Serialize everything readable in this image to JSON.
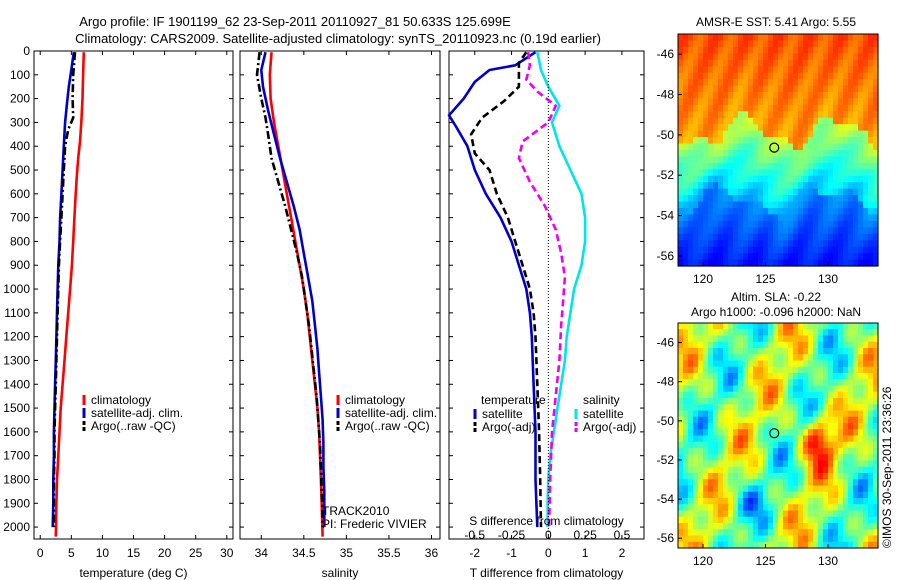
{
  "figure": {
    "title_line1": "Argo profile: IF 1901199_62 23-Sep-2011 20110927_81 50.633S 125.699E",
    "title_line2": "Climatology: CARS2009. Satellite-adjusted climatology: synTS_20110923.nc (0.19d earlier)",
    "copyright": "©IMOS 30-Sep-2011 23:36:26",
    "colors": {
      "climatology": "#ff0000",
      "satellite": "#0000cc",
      "argo": "#000000",
      "sal_sat": "#00e5e5",
      "sal_argo": "#ee00ee"
    }
  },
  "chart_data": [
    {
      "id": "temperature",
      "type": "line",
      "xlabel": "temperature (deg C)",
      "ylabel": "",
      "xlim": [
        -1,
        31
      ],
      "ylim": [
        2050,
        0
      ],
      "xticks": [
        0,
        5,
        10,
        15,
        20,
        25,
        30
      ],
      "yticks": [
        0,
        100,
        200,
        300,
        400,
        500,
        600,
        700,
        800,
        900,
        1000,
        1100,
        1200,
        1300,
        1400,
        1500,
        1600,
        1700,
        1800,
        1900,
        2000
      ],
      "legend": [
        "climatology",
        "satellite-adj. clim.",
        "Argo(..raw -QC)"
      ],
      "legend_position": "lower-center",
      "series": [
        {
          "name": "climatology",
          "style": "solid",
          "color": "#ff0000",
          "points": [
            [
              7.0,
              5
            ],
            [
              6.9,
              100
            ],
            [
              6.8,
              200
            ],
            [
              6.6,
              300
            ],
            [
              6.4,
              380
            ],
            [
              6.1,
              450
            ],
            [
              5.9,
              520
            ],
            [
              5.7,
              600
            ],
            [
              5.5,
              700
            ],
            [
              5.3,
              800
            ],
            [
              5.1,
              900
            ],
            [
              4.8,
              1000
            ],
            [
              4.5,
              1100
            ],
            [
              4.2,
              1200
            ],
            [
              3.9,
              1300
            ],
            [
              3.6,
              1400
            ],
            [
              3.3,
              1500
            ],
            [
              3.1,
              1600
            ],
            [
              2.9,
              1700
            ],
            [
              2.7,
              1800
            ],
            [
              2.6,
              1900
            ],
            [
              2.5,
              2040
            ]
          ]
        },
        {
          "name": "satellite-adj. clim.",
          "style": "solid",
          "color": "#0000cc",
          "points": [
            [
              5.4,
              5
            ],
            [
              5.0,
              80
            ],
            [
              4.6,
              150
            ],
            [
              4.3,
              220
            ],
            [
              4.0,
              300
            ],
            [
              3.8,
              400
            ],
            [
              3.6,
              500
            ],
            [
              3.4,
              600
            ],
            [
              3.2,
              700
            ],
            [
              3.1,
              800
            ],
            [
              2.9,
              900
            ],
            [
              2.8,
              1000
            ],
            [
              2.7,
              1100
            ],
            [
              2.6,
              1200
            ],
            [
              2.5,
              1300
            ],
            [
              2.4,
              1400
            ],
            [
              2.3,
              1500
            ],
            [
              2.2,
              1600
            ],
            [
              2.2,
              1700
            ],
            [
              2.1,
              1800
            ],
            [
              2.1,
              1900
            ],
            [
              2.0,
              2000
            ]
          ]
        },
        {
          "name": "Argo(..raw -QC)",
          "style": "dashdot",
          "color": "#000000",
          "points": [
            [
              5.6,
              5
            ],
            [
              5.3,
              100
            ],
            [
              5.2,
              200
            ],
            [
              5.3,
              280
            ],
            [
              4.5,
              330
            ],
            [
              4.0,
              400
            ],
            [
              3.8,
              500
            ],
            [
              3.6,
              600
            ],
            [
              3.4,
              700
            ],
            [
              3.2,
              800
            ],
            [
              3.0,
              900
            ],
            [
              2.9,
              1000
            ],
            [
              2.8,
              1100
            ],
            [
              2.7,
              1200
            ],
            [
              2.6,
              1300
            ],
            [
              2.5,
              1400
            ],
            [
              2.4,
              1500
            ],
            [
              2.3,
              1600
            ],
            [
              2.3,
              1700
            ],
            [
              2.2,
              1800
            ],
            [
              2.2,
              1900
            ],
            [
              2.2,
              2000
            ]
          ]
        }
      ]
    },
    {
      "id": "salinity",
      "type": "line",
      "xlabel": "salinity",
      "xlim": [
        33.75,
        36.1
      ],
      "ylim": [
        2050,
        0
      ],
      "xticks": [
        34,
        34.5,
        35,
        35.5,
        36
      ],
      "legend": [
        "climatology",
        "satellite-adj. clim.",
        "Argo(..raw -QC)"
      ],
      "legend_position": "lower-center",
      "annotation_line1": "TRACK2010",
      "annotation_line2": "PI: Frederic VIVIER",
      "series": [
        {
          "name": "climatology",
          "style": "solid",
          "color": "#ff0000",
          "points": [
            [
              34.12,
              5
            ],
            [
              34.1,
              100
            ],
            [
              34.11,
              200
            ],
            [
              34.15,
              300
            ],
            [
              34.2,
              400
            ],
            [
              34.25,
              500
            ],
            [
              34.3,
              600
            ],
            [
              34.35,
              700
            ],
            [
              34.4,
              800
            ],
            [
              34.45,
              900
            ],
            [
              34.5,
              1000
            ],
            [
              34.54,
              1100
            ],
            [
              34.57,
              1200
            ],
            [
              34.6,
              1300
            ],
            [
              34.63,
              1400
            ],
            [
              34.66,
              1500
            ],
            [
              34.68,
              1600
            ],
            [
              34.69,
              1700
            ],
            [
              34.7,
              1800
            ],
            [
              34.71,
              1900
            ],
            [
              34.72,
              2040
            ]
          ]
        },
        {
          "name": "satellite-adj. clim.",
          "style": "solid",
          "color": "#0000cc",
          "points": [
            [
              34.05,
              5
            ],
            [
              34.0,
              80
            ],
            [
              34.02,
              150
            ],
            [
              34.08,
              250
            ],
            [
              34.15,
              350
            ],
            [
              34.22,
              450
            ],
            [
              34.3,
              550
            ],
            [
              34.38,
              650
            ],
            [
              34.45,
              750
            ],
            [
              34.5,
              850
            ],
            [
              34.55,
              950
            ],
            [
              34.6,
              1050
            ],
            [
              34.63,
              1150
            ],
            [
              34.66,
              1250
            ],
            [
              34.68,
              1350
            ],
            [
              34.7,
              1450
            ],
            [
              34.72,
              1550
            ],
            [
              34.73,
              1650
            ],
            [
              34.73,
              1750
            ],
            [
              34.74,
              1850
            ],
            [
              34.74,
              1950
            ],
            [
              34.74,
              2000
            ]
          ]
        },
        {
          "name": "Argo(..raw -QC)",
          "style": "dashdot",
          "color": "#000000",
          "points": [
            [
              33.98,
              5
            ],
            [
              33.95,
              100
            ],
            [
              34.0,
              200
            ],
            [
              34.05,
              280
            ],
            [
              34.08,
              350
            ],
            [
              34.12,
              450
            ],
            [
              34.2,
              550
            ],
            [
              34.28,
              650
            ],
            [
              34.35,
              750
            ],
            [
              34.42,
              850
            ],
            [
              34.48,
              950
            ],
            [
              34.52,
              1050
            ],
            [
              34.56,
              1150
            ],
            [
              34.59,
              1250
            ],
            [
              34.62,
              1350
            ],
            [
              34.65,
              1450
            ],
            [
              34.67,
              1550
            ],
            [
              34.69,
              1650
            ],
            [
              34.7,
              1750
            ],
            [
              34.71,
              1850
            ],
            [
              34.72,
              1950
            ],
            [
              34.72,
              2000
            ]
          ]
        }
      ]
    },
    {
      "id": "difference",
      "type": "line",
      "xlabel": "T difference from climatology",
      "xlabel_top": "S difference from climatology",
      "xlim": [
        -2.7,
        2.6
      ],
      "ylim": [
        2050,
        0
      ],
      "xticks": [
        -2,
        -1,
        0,
        1,
        2
      ],
      "xticks_top_labels": [
        "-0.5",
        "-0.25",
        "0",
        "0.25",
        "0.5"
      ],
      "xticks_top_positions": [
        -2,
        -1,
        0,
        1,
        2
      ],
      "legend_left_title": "temperature",
      "legend_right_title": "salinity",
      "legend_left": [
        "satellite",
        "Argo(-adj)"
      ],
      "legend_right": [
        "satellite",
        "Argo(-adj)"
      ],
      "legend_position": "lower-center",
      "series": [
        {
          "name": "temperature satellite",
          "style": "solid",
          "color": "#0000cc",
          "points": [
            [
              -0.35,
              5
            ],
            [
              -0.6,
              30
            ],
            [
              -0.9,
              60
            ],
            [
              -1.6,
              80
            ],
            [
              -2.0,
              130
            ],
            [
              -2.3,
              200
            ],
            [
              -2.7,
              270
            ],
            [
              -2.5,
              320
            ],
            [
              -2.2,
              400
            ],
            [
              -2.0,
              500
            ],
            [
              -1.7,
              600
            ],
            [
              -1.3,
              700
            ],
            [
              -1.0,
              800
            ],
            [
              -0.8,
              900
            ],
            [
              -0.6,
              1000
            ],
            [
              -0.5,
              1100
            ],
            [
              -0.45,
              1200
            ],
            [
              -0.4,
              1400
            ],
            [
              -0.35,
              1600
            ],
            [
              -0.35,
              1800
            ],
            [
              -0.3,
              2000
            ]
          ]
        },
        {
          "name": "temperature Argo(-adj)",
          "style": "dashed",
          "color": "#000000",
          "points": [
            [
              -0.6,
              5
            ],
            [
              -0.8,
              50
            ],
            [
              -0.8,
              150
            ],
            [
              -1.2,
              210
            ],
            [
              -1.8,
              280
            ],
            [
              -2.1,
              350
            ],
            [
              -2.0,
              430
            ],
            [
              -1.6,
              500
            ],
            [
              -1.4,
              600
            ],
            [
              -1.1,
              700
            ],
            [
              -0.9,
              800
            ],
            [
              -0.7,
              900
            ],
            [
              -0.5,
              1000
            ],
            [
              -0.4,
              1100
            ],
            [
              -0.35,
              1200
            ],
            [
              -0.3,
              1400
            ],
            [
              -0.25,
              1600
            ],
            [
              -0.22,
              1800
            ],
            [
              -0.2,
              2000
            ]
          ]
        },
        {
          "name": "salinity satellite",
          "style": "solid",
          "color": "#00e5e5",
          "points": [
            [
              -0.3,
              5
            ],
            [
              -0.2,
              80
            ],
            [
              0.0,
              150
            ],
            [
              0.3,
              230
            ],
            [
              0.1,
              300
            ],
            [
              0.3,
              400
            ],
            [
              0.6,
              500
            ],
            [
              0.9,
              600
            ],
            [
              1.0,
              700
            ],
            [
              1.0,
              800
            ],
            [
              0.9,
              900
            ],
            [
              0.7,
              1000
            ],
            [
              0.6,
              1100
            ],
            [
              0.5,
              1200
            ],
            [
              0.45,
              1300
            ],
            [
              0.35,
              1400
            ],
            [
              0.25,
              1500
            ],
            [
              0.15,
              1600
            ],
            [
              0.05,
              1700
            ],
            [
              0.0,
              1800
            ],
            [
              -0.02,
              1900
            ],
            [
              -0.02,
              2000
            ]
          ]
        },
        {
          "name": "salinity Argo(-adj)",
          "style": "dashed",
          "color": "#ee00ee",
          "points": [
            [
              -0.55,
              5
            ],
            [
              -0.5,
              60
            ],
            [
              -0.6,
              120
            ],
            [
              -0.3,
              170
            ],
            [
              0.2,
              230
            ],
            [
              0.0,
              300
            ],
            [
              -0.7,
              380
            ],
            [
              -0.8,
              450
            ],
            [
              -0.5,
              550
            ],
            [
              -0.1,
              650
            ],
            [
              0.2,
              750
            ],
            [
              0.35,
              850
            ],
            [
              0.45,
              950
            ],
            [
              0.4,
              1050
            ],
            [
              0.35,
              1150
            ],
            [
              0.3,
              1300
            ],
            [
              0.2,
              1450
            ],
            [
              0.1,
              1600
            ],
            [
              0.05,
              1800
            ],
            [
              0.02,
              2000
            ]
          ]
        }
      ]
    },
    {
      "id": "sst_map",
      "type": "heatmap",
      "title": "AMSR-E SST: 5.41  Argo: 5.55",
      "xlim": [
        118,
        134
      ],
      "ylim": [
        -56.5,
        -45
      ],
      "xticks": [
        120,
        125,
        130
      ],
      "yticks": [
        -46,
        -48,
        -50,
        -52,
        -54,
        -56
      ],
      "marker": {
        "lon": 125.699,
        "lat": -50.633
      }
    },
    {
      "id": "sla_map",
      "type": "heatmap",
      "title_line1": "Altim. SLA: -0.22",
      "title_line2": "Argo h1000: -0.096 h2000: NaN",
      "xlim": [
        118,
        134
      ],
      "ylim": [
        -56.5,
        -45
      ],
      "xticks": [
        120,
        125,
        130
      ],
      "yticks": [
        -46,
        -48,
        -50,
        -52,
        -54,
        -56
      ],
      "marker": {
        "lon": 125.699,
        "lat": -50.633
      }
    }
  ]
}
